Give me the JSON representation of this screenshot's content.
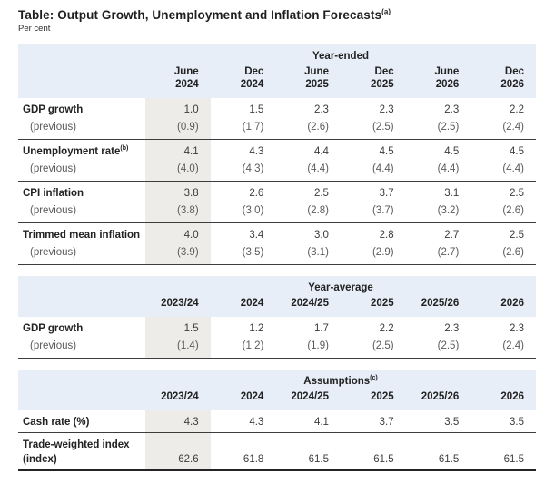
{
  "title": "Table: Output Growth, Unemployment and Inflation Forecasts",
  "title_superscript": "(a)",
  "subtitle": "Per cent",
  "previous_label": "(previous)",
  "colors": {
    "header_background": "#e7eef8",
    "highlight_column_background": "#edece9",
    "rule_color": "#3c3c3c",
    "text_primary": "#222222",
    "text_secondary": "#5a5a5a"
  },
  "tables": [
    {
      "section_title": "Year-ended",
      "section_superscript": "",
      "columns": [
        "June\n2024",
        "Dec\n2024",
        "June\n2025",
        "Dec\n2025",
        "June\n2026",
        "Dec\n2026"
      ],
      "rows": [
        {
          "label": "GDP growth",
          "label_superscript": "",
          "values": [
            "1.0",
            "1.5",
            "2.3",
            "2.3",
            "2.3",
            "2.2"
          ],
          "previous": [
            "(0.9)",
            "(1.7)",
            "(2.6)",
            "(2.5)",
            "(2.5)",
            "(2.4)"
          ]
        },
        {
          "label": "Unemployment rate",
          "label_superscript": "(b)",
          "values": [
            "4.1",
            "4.3",
            "4.4",
            "4.5",
            "4.5",
            "4.5"
          ],
          "previous": [
            "(4.0)",
            "(4.3)",
            "(4.4)",
            "(4.4)",
            "(4.4)",
            "(4.4)"
          ]
        },
        {
          "label": "CPI inflation",
          "label_superscript": "",
          "values": [
            "3.8",
            "2.6",
            "2.5",
            "3.7",
            "3.1",
            "2.5"
          ],
          "previous": [
            "(3.8)",
            "(3.0)",
            "(2.8)",
            "(3.7)",
            "(3.2)",
            "(2.6)"
          ]
        },
        {
          "label": "Trimmed mean inflation",
          "label_superscript": "",
          "values": [
            "4.0",
            "3.4",
            "3.0",
            "2.8",
            "2.7",
            "2.5"
          ],
          "previous": [
            "(3.9)",
            "(3.5)",
            "(3.1)",
            "(2.9)",
            "(2.7)",
            "(2.6)"
          ]
        }
      ]
    },
    {
      "section_title": "Year-average",
      "section_superscript": "",
      "columns": [
        "2023/24",
        "2024",
        "2024/25",
        "2025",
        "2025/26",
        "2026"
      ],
      "rows": [
        {
          "label": "GDP growth",
          "label_superscript": "",
          "values": [
            "1.5",
            "1.2",
            "1.7",
            "2.2",
            "2.3",
            "2.3"
          ],
          "previous": [
            "(1.4)",
            "(1.2)",
            "(1.9)",
            "(2.5)",
            "(2.5)",
            "(2.4)"
          ]
        }
      ]
    },
    {
      "section_title": "Assumptions",
      "section_superscript": "(c)",
      "columns": [
        "2023/24",
        "2024",
        "2024/25",
        "2025",
        "2025/26",
        "2026"
      ],
      "rows": [
        {
          "label": "Cash rate (%)",
          "label_superscript": "",
          "values": [
            "4.3",
            "4.3",
            "4.1",
            "3.7",
            "3.5",
            "3.5"
          ]
        },
        {
          "label": "Trade-weighted index\n(index)",
          "label_superscript": "",
          "values": [
            "62.6",
            "61.8",
            "61.5",
            "61.5",
            "61.5",
            "61.5"
          ]
        }
      ]
    }
  ]
}
